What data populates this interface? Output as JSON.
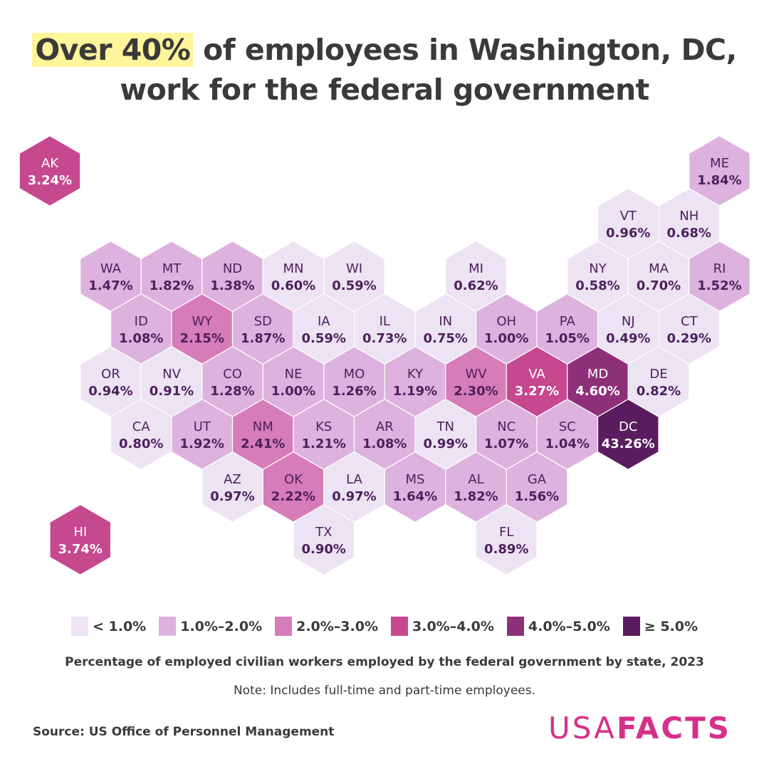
{
  "title": {
    "highlight": "Over 40%",
    "rest_line1": " of employees in Washington, DC,",
    "line2": "work for the federal government",
    "highlight_color": "#fff59a"
  },
  "chart_data": {
    "type": "hex-tile-map",
    "value_unit": "%",
    "states": [
      {
        "abbr": "AK",
        "value": "3.24%"
      },
      {
        "abbr": "ME",
        "value": "1.84%"
      },
      {
        "abbr": "VT",
        "value": "0.96%"
      },
      {
        "abbr": "NH",
        "value": "0.68%"
      },
      {
        "abbr": "WA",
        "value": "1.47%"
      },
      {
        "abbr": "MT",
        "value": "1.82%"
      },
      {
        "abbr": "ND",
        "value": "1.38%"
      },
      {
        "abbr": "MN",
        "value": "0.60%"
      },
      {
        "abbr": "WI",
        "value": "0.59%"
      },
      {
        "abbr": "MI",
        "value": "0.62%"
      },
      {
        "abbr": "NY",
        "value": "0.58%"
      },
      {
        "abbr": "MA",
        "value": "0.70%"
      },
      {
        "abbr": "RI",
        "value": "1.52%"
      },
      {
        "abbr": "ID",
        "value": "1.08%"
      },
      {
        "abbr": "WY",
        "value": "2.15%"
      },
      {
        "abbr": "SD",
        "value": "1.87%"
      },
      {
        "abbr": "IA",
        "value": "0.59%"
      },
      {
        "abbr": "IL",
        "value": "0.73%"
      },
      {
        "abbr": "IN",
        "value": "0.75%"
      },
      {
        "abbr": "OH",
        "value": "1.00%"
      },
      {
        "abbr": "PA",
        "value": "1.05%"
      },
      {
        "abbr": "NJ",
        "value": "0.49%"
      },
      {
        "abbr": "CT",
        "value": "0.29%"
      },
      {
        "abbr": "OR",
        "value": "0.94%"
      },
      {
        "abbr": "NV",
        "value": "0.91%"
      },
      {
        "abbr": "CO",
        "value": "1.28%"
      },
      {
        "abbr": "NE",
        "value": "1.00%"
      },
      {
        "abbr": "MO",
        "value": "1.26%"
      },
      {
        "abbr": "KY",
        "value": "1.19%"
      },
      {
        "abbr": "WV",
        "value": "2.30%"
      },
      {
        "abbr": "VA",
        "value": "3.27%"
      },
      {
        "abbr": "MD",
        "value": "4.60%"
      },
      {
        "abbr": "DE",
        "value": "0.82%"
      },
      {
        "abbr": "CA",
        "value": "0.80%"
      },
      {
        "abbr": "UT",
        "value": "1.92%"
      },
      {
        "abbr": "NM",
        "value": "2.41%"
      },
      {
        "abbr": "KS",
        "value": "1.21%"
      },
      {
        "abbr": "AR",
        "value": "1.08%"
      },
      {
        "abbr": "TN",
        "value": "0.99%"
      },
      {
        "abbr": "NC",
        "value": "1.07%"
      },
      {
        "abbr": "SC",
        "value": "1.04%"
      },
      {
        "abbr": "DC",
        "value": "43.26%"
      },
      {
        "abbr": "AZ",
        "value": "0.97%"
      },
      {
        "abbr": "OK",
        "value": "2.22%"
      },
      {
        "abbr": "LA",
        "value": "0.97%"
      },
      {
        "abbr": "MS",
        "value": "1.64%"
      },
      {
        "abbr": "AL",
        "value": "1.82%"
      },
      {
        "abbr": "GA",
        "value": "1.56%"
      },
      {
        "abbr": "HI",
        "value": "3.74%"
      },
      {
        "abbr": "TX",
        "value": "0.90%"
      },
      {
        "abbr": "FL",
        "value": "0.89%"
      }
    ],
    "legend": [
      {
        "label": "< 1.0%",
        "min": 0,
        "max": 1,
        "color": "#ece3f3",
        "text_color": "#4d1f5c"
      },
      {
        "label": "1.0%–2.0%",
        "min": 1,
        "max": 2,
        "color": "#ddb2de",
        "text_color": "#4d1f5c"
      },
      {
        "label": "2.0%–3.0%",
        "min": 2,
        "max": 3,
        "color": "#d67cb8",
        "text_color": "#4d1f5c"
      },
      {
        "label": "3.0%–4.0%",
        "min": 3,
        "max": 4,
        "color": "#c6488f",
        "text_color": "#ffffff"
      },
      {
        "label": "4.0%–5.0%",
        "min": 4,
        "max": 5,
        "color": "#8e3079",
        "text_color": "#ffffff"
      },
      {
        "label": "≥ 5.0%",
        "min": 5,
        "max": 1000,
        "color": "#5a1c5e",
        "text_color": "#ffffff"
      }
    ]
  },
  "subtitle": "Percentage of employed civilian workers employed by the federal government by state, 2023",
  "note": "Note: Includes full-time and part-time employees.",
  "source": "Source: US Office of Personnel Management",
  "logo": {
    "part1": "USA",
    "part2": "FACTS",
    "color": "#d6308a"
  }
}
